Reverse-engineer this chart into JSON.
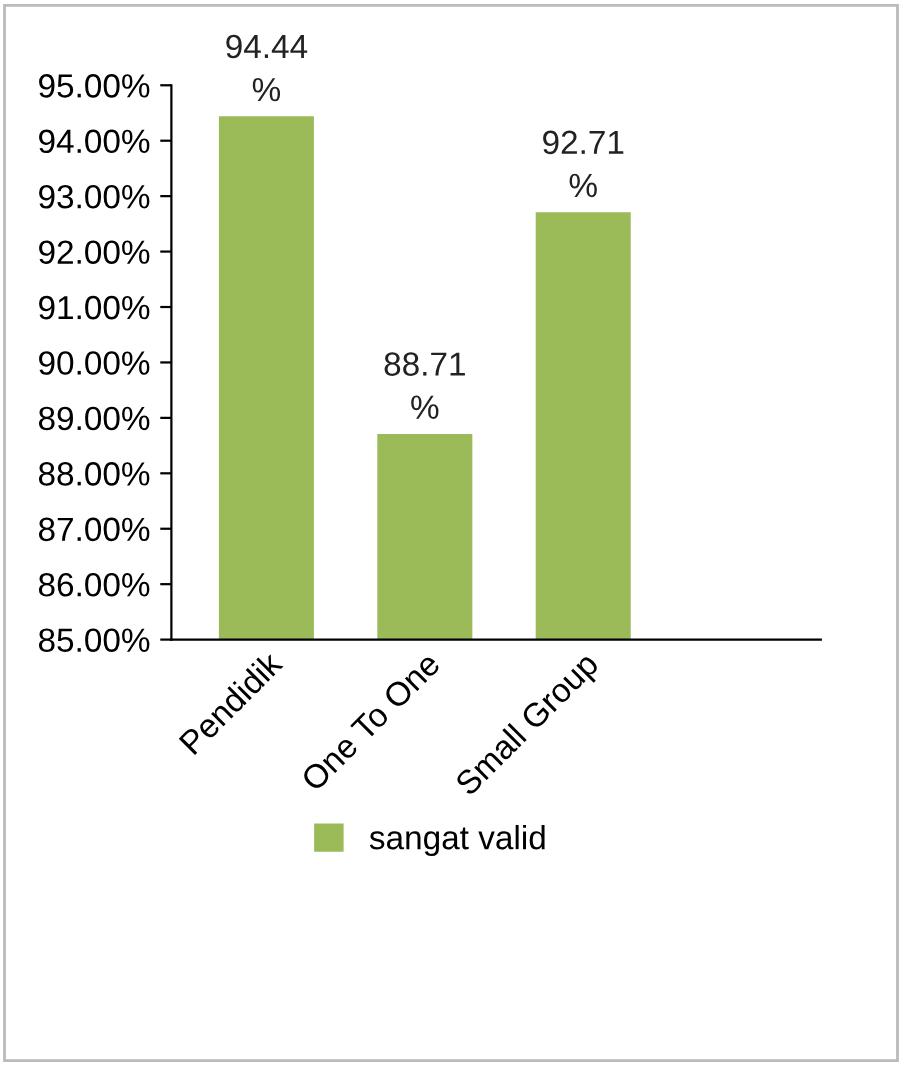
{
  "chart_data": {
    "type": "bar",
    "categories": [
      "Pendidik",
      "One To One",
      "Small Group"
    ],
    "series": [
      {
        "name": "sangat valid",
        "color": "#9bbb59",
        "values": [
          94.44,
          88.71,
          92.71
        ]
      }
    ],
    "value_labels": [
      "94.44%",
      "88.71%",
      "92.71%"
    ],
    "ylim": [
      85,
      95
    ],
    "yticks": [
      {
        "value": 85,
        "label": "85.00%"
      },
      {
        "value": 86,
        "label": "86.00%"
      },
      {
        "value": 87,
        "label": "87.00%"
      },
      {
        "value": 88,
        "label": "88.00%"
      },
      {
        "value": 89,
        "label": "89.00%"
      },
      {
        "value": 90,
        "label": "90.00%"
      },
      {
        "value": 91,
        "label": "91.00%"
      },
      {
        "value": 92,
        "label": "92.00%"
      },
      {
        "value": 93,
        "label": "93.00%"
      },
      {
        "value": 94,
        "label": "94.00%"
      },
      {
        "value": 95,
        "label": "95.00%"
      }
    ],
    "grid": false,
    "legend": "bottom"
  }
}
